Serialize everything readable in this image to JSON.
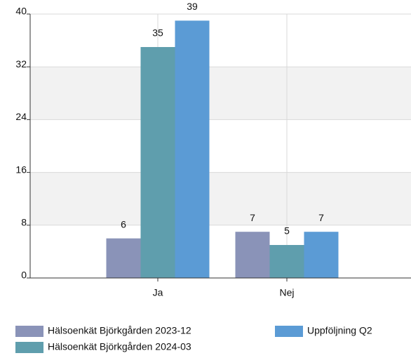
{
  "chart_data": {
    "type": "bar",
    "categories": [
      "Ja",
      "Nej"
    ],
    "series": [
      {
        "name": "Hälsoenkät Björkgården 2023-12",
        "color": "#8a93b8",
        "values": [
          6,
          7
        ]
      },
      {
        "name": "Hälsoenkät Björkgården 2024-03",
        "color": "#5f9ead",
        "values": [
          35,
          5
        ]
      },
      {
        "name": "Uppföljning Q2",
        "color": "#5b9bd5",
        "values": [
          39,
          7
        ]
      }
    ],
    "ylim": [
      0,
      40
    ],
    "yticks": [
      0,
      8,
      16,
      24,
      32,
      40
    ],
    "grid": true,
    "legend": "bottom"
  }
}
